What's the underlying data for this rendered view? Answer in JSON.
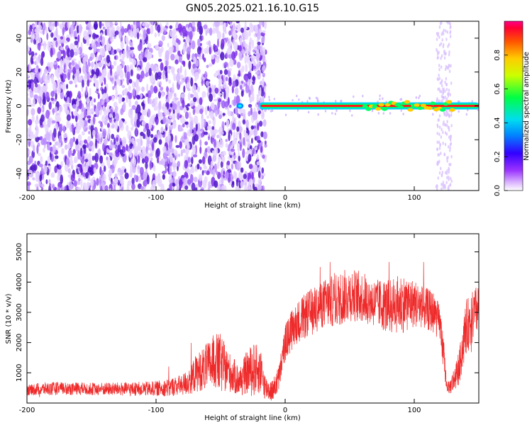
{
  "title": "GN05.2025.021.16.10.G15",
  "colors": {
    "spectrogram_noise": "#7a2ee6",
    "snr_line": "#ee2a2a",
    "colorbar": [
      "#cc00ff",
      "#3300ff",
      "#00ccff",
      "#00ff33",
      "#ccff00",
      "#ffcc00",
      "#ff6600",
      "#ff0000",
      "#ff0066"
    ]
  },
  "chart_data": [
    {
      "type": "heatmap",
      "xlabel": "Height of straight line (km)",
      "ylabel": "Frequency (Hz)",
      "xlim": [
        -200,
        150
      ],
      "ylim": [
        -50,
        50
      ],
      "xticks": [
        -200,
        -100,
        0,
        100
      ],
      "yticks": [
        -40,
        -20,
        0,
        20,
        40
      ],
      "colorbar": {
        "label": "Normalized spectral amplitude",
        "range": [
          0,
          1
        ],
        "ticks": [
          "0.0",
          "0.2",
          "0.4",
          "0.6",
          "0.8"
        ]
      },
      "signal": {
        "frequency_hz": 0,
        "x_start": -20,
        "x_end": 150,
        "weak_blob_x": -35,
        "fading_x": [
          120,
          130
        ]
      },
      "noise_region": {
        "x_start": -200,
        "x_end": -15
      }
    },
    {
      "type": "line",
      "xlabel": "Height of straight line (km)",
      "ylabel": "SNR (10 * v/v)",
      "xlim": [
        -200,
        150
      ],
      "ylim": [
        0,
        5600
      ],
      "xticks": [
        -200,
        -100,
        0,
        100
      ],
      "yticks": [
        1000,
        2000,
        3000,
        4000,
        5000
      ],
      "envelope": {
        "x": [
          -200,
          -180,
          -150,
          -120,
          -100,
          -90,
          -80,
          -75,
          -70,
          -65,
          -60,
          -55,
          -50,
          -45,
          -40,
          -35,
          -30,
          -25,
          -20,
          -15,
          -10,
          -5,
          -2,
          0,
          5,
          10,
          20,
          30,
          40,
          50,
          60,
          70,
          80,
          90,
          100,
          110,
          115,
          120,
          123,
          125,
          127,
          130,
          135,
          140,
          145,
          150
        ],
        "base": [
          450,
          480,
          470,
          460,
          480,
          520,
          600,
          700,
          950,
          1100,
          1200,
          1400,
          1300,
          1100,
          900,
          700,
          1000,
          1100,
          1100,
          500,
          400,
          800,
          1500,
          2000,
          2400,
          2700,
          3000,
          3300,
          3400,
          3600,
          3500,
          3300,
          3200,
          3300,
          3300,
          3100,
          3000,
          2600,
          1500,
          600,
          500,
          700,
          1200,
          2500,
          2800,
          3200
        ],
        "noise": [
          200,
          220,
          210,
          230,
          250,
          300,
          350,
          450,
          600,
          700,
          800,
          900,
          1000,
          700,
          600,
          500,
          700,
          900,
          800,
          400,
          350,
          450,
          500,
          600,
          700,
          700,
          800,
          800,
          900,
          900,
          850,
          800,
          900,
          1000,
          800,
          700,
          700,
          600,
          500,
          200,
          200,
          400,
          600,
          900,
          900,
          800
        ]
      }
    }
  ]
}
